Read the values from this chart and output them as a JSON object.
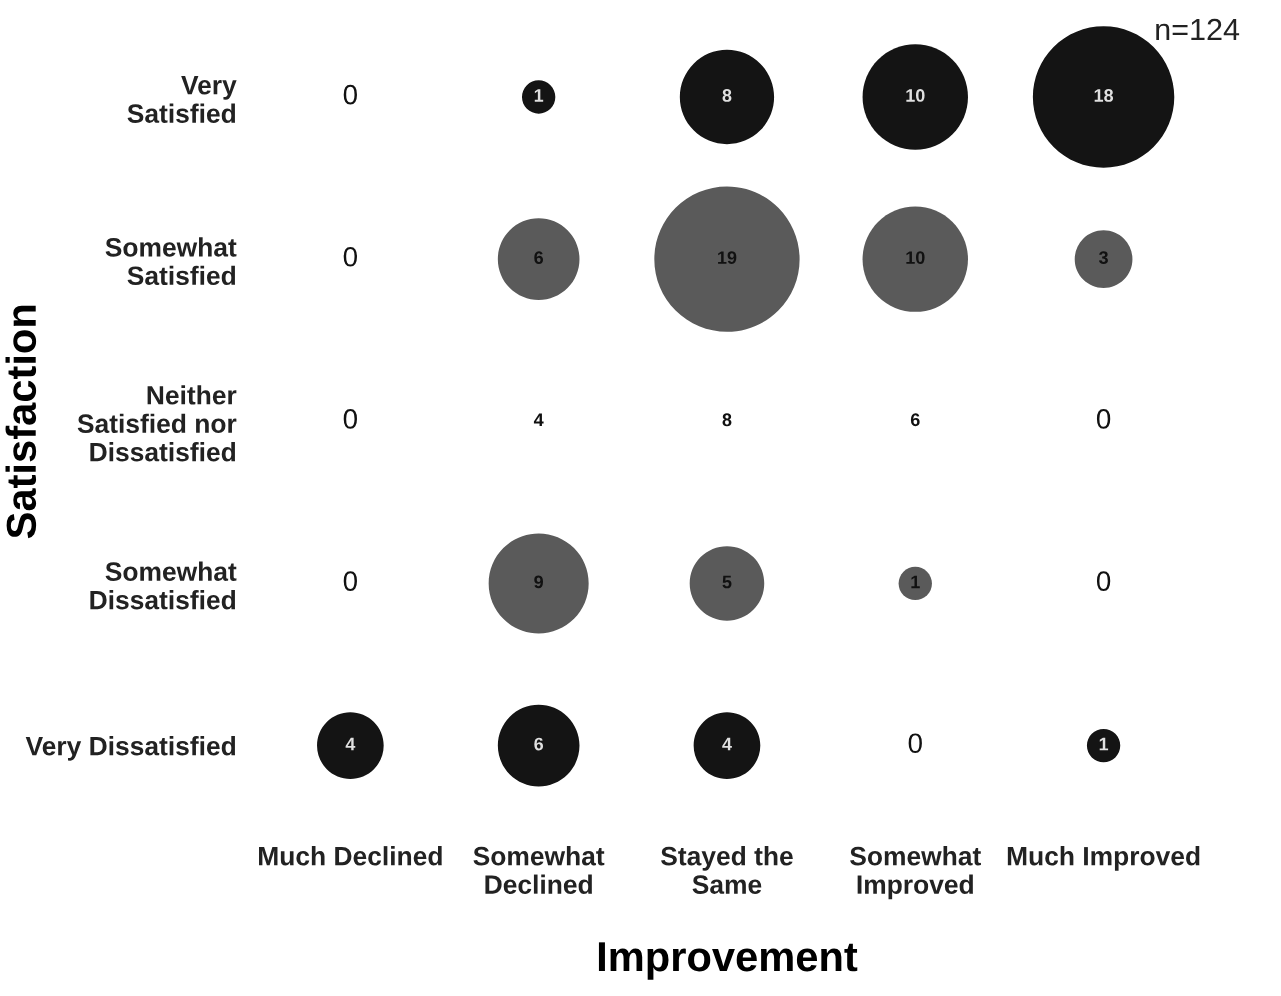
{
  "chart_data": {
    "type": "heatmap",
    "xlabel": "Improvement",
    "ylabel": "Satisfaction",
    "annotations": [
      "n=124"
    ],
    "categories": [
      "Much Declined",
      "Somewhat\nDeclined",
      "Stayed the\nSame",
      "Somewhat\nImproved",
      "Much Improved"
    ],
    "y_categories": [
      "Very\nSatisfied",
      "Somewhat\nSatisfied",
      "Neither\nSatisfied nor\nDissatisfied",
      "Somewhat\nDissatisfied",
      "Very Dissatisfied"
    ],
    "cells": [
      [
        0,
        1,
        8,
        10,
        18
      ],
      [
        0,
        6,
        19,
        10,
        3
      ],
      [
        0,
        4,
        8,
        6,
        0
      ],
      [
        0,
        9,
        5,
        1,
        0
      ],
      [
        4,
        6,
        4,
        0,
        1
      ]
    ],
    "colors": [
      "#141414",
      "#5a5a5a",
      "#ffffff",
      "#5a5a5a",
      "#141414"
    ],
    "data_labels": true
  }
}
